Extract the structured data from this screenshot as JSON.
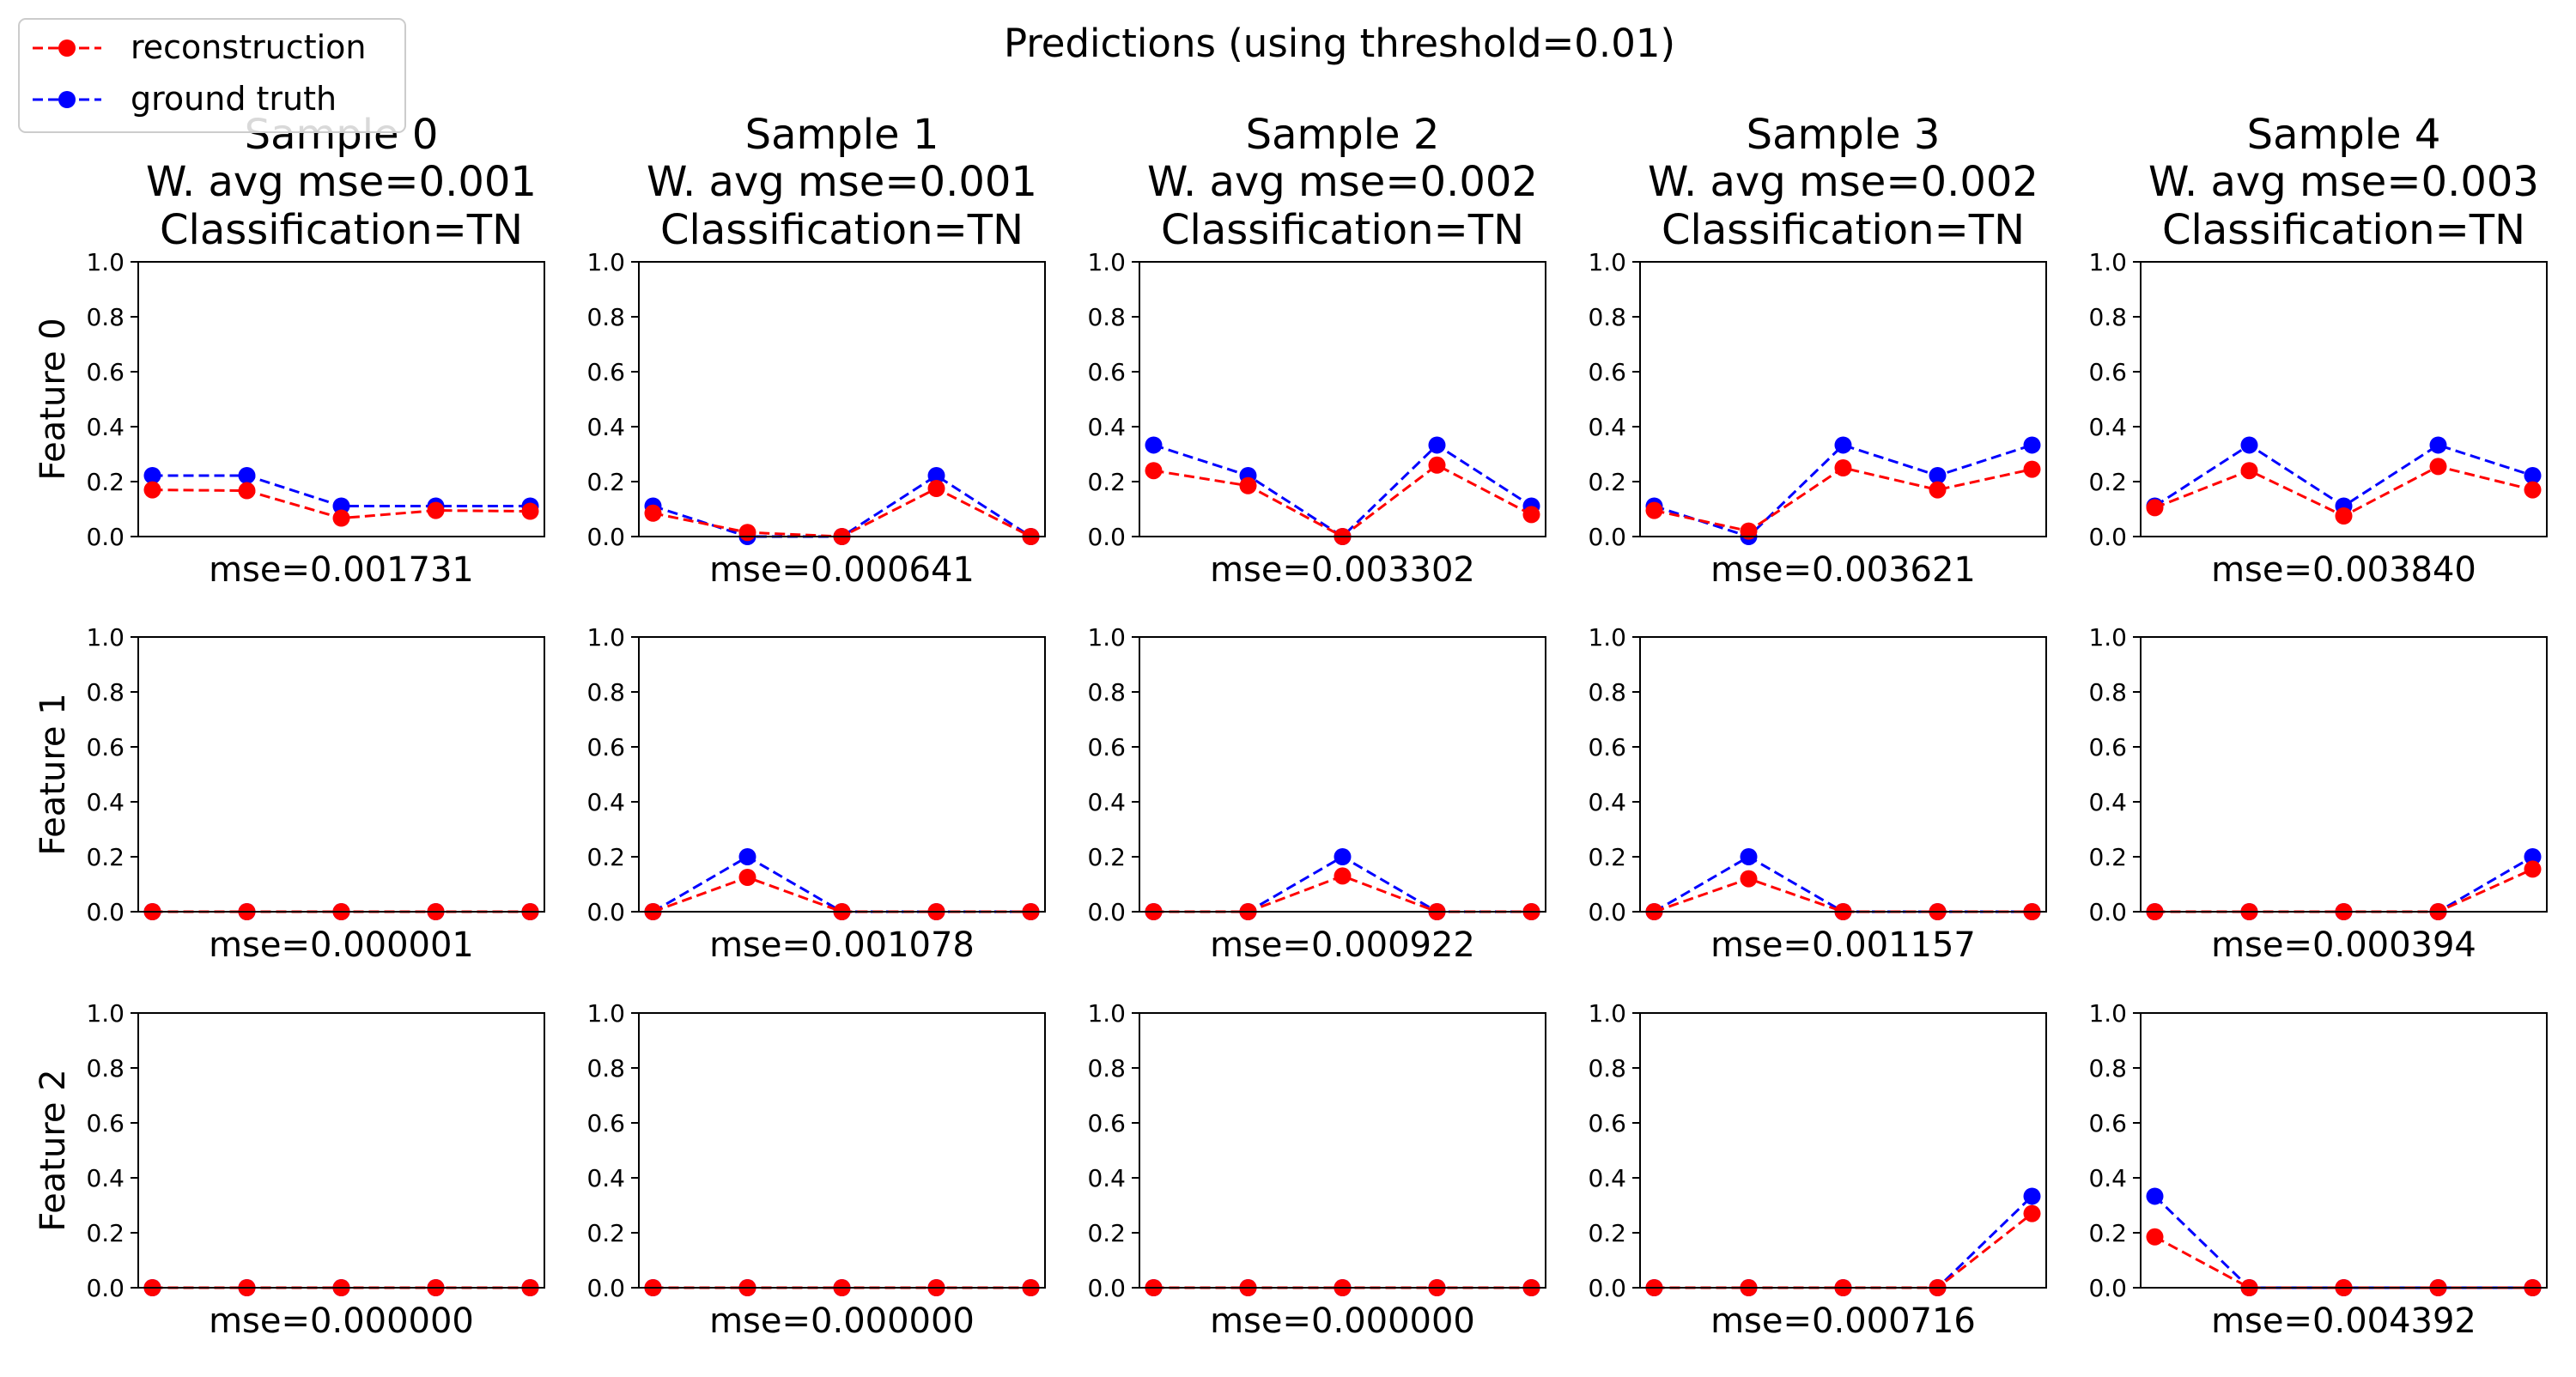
{
  "figure": {
    "suptitle": "Predictions (using threshold=0.01)",
    "legend": {
      "placement": "top-left",
      "entries": [
        {
          "label": "reconstruction",
          "color": "#ff0000"
        },
        {
          "label": "ground truth",
          "color": "#0000ff"
        }
      ]
    }
  },
  "chart_data": {
    "type": "line",
    "grid": false,
    "x": [
      0,
      1,
      2,
      3,
      4
    ],
    "xlim": [
      -0.15,
      4.15
    ],
    "ylim": [
      0,
      1
    ],
    "yticks": [
      "0.0",
      "0.2",
      "0.4",
      "0.6",
      "0.8",
      "1.0"
    ],
    "series_styles": {
      "reconstruction": {
        "color": "#ff0000",
        "linestyle": "dashed",
        "marker": "circle"
      },
      "ground_truth": {
        "color": "#0000ff",
        "linestyle": "dashed",
        "marker": "circle"
      }
    },
    "rows": [
      "Feature 0",
      "Feature 1",
      "Feature 2"
    ],
    "columns": [
      {
        "title": "Sample 0",
        "subtitle": "W. avg mse=0.001",
        "classification": "Classification=TN"
      },
      {
        "title": "Sample 1",
        "subtitle": "W. avg mse=0.001",
        "classification": "Classification=TN"
      },
      {
        "title": "Sample 2",
        "subtitle": "W. avg mse=0.002",
        "classification": "Classification=TN"
      },
      {
        "title": "Sample 3",
        "subtitle": "W. avg mse=0.002",
        "classification": "Classification=TN"
      },
      {
        "title": "Sample 4",
        "subtitle": "W. avg mse=0.003",
        "classification": "Classification=TN"
      }
    ],
    "panels": [
      [
        {
          "xlabel": "mse=0.001731",
          "reconstruction": [
            0.17,
            0.167,
            0.067,
            0.095,
            0.092
          ],
          "ground_truth": [
            0.222,
            0.222,
            0.111,
            0.111,
            0.111
          ]
        },
        {
          "xlabel": "mse=0.000641",
          "reconstruction": [
            0.085,
            0.015,
            0.0,
            0.175,
            0.0
          ],
          "ground_truth": [
            0.111,
            0.0,
            0.0,
            0.222,
            0.0
          ]
        },
        {
          "xlabel": "mse=0.003302",
          "reconstruction": [
            0.24,
            0.185,
            0.0,
            0.26,
            0.08
          ],
          "ground_truth": [
            0.333,
            0.222,
            0.0,
            0.333,
            0.111
          ]
        },
        {
          "xlabel": "mse=0.003621",
          "reconstruction": [
            0.095,
            0.02,
            0.25,
            0.17,
            0.245
          ],
          "ground_truth": [
            0.111,
            0.0,
            0.333,
            0.222,
            0.333
          ]
        },
        {
          "xlabel": "mse=0.003840",
          "reconstruction": [
            0.105,
            0.24,
            0.075,
            0.255,
            0.17
          ],
          "ground_truth": [
            0.111,
            0.333,
            0.111,
            0.333,
            0.222
          ]
        }
      ],
      [
        {
          "xlabel": "mse=0.000001",
          "reconstruction": [
            0,
            0,
            0,
            0,
            0
          ],
          "ground_truth": [
            0,
            0,
            0,
            0,
            0
          ]
        },
        {
          "xlabel": "mse=0.001078",
          "reconstruction": [
            0,
            0.125,
            0,
            0,
            0
          ],
          "ground_truth": [
            0,
            0.2,
            0,
            0,
            0
          ]
        },
        {
          "xlabel": "mse=0.000922",
          "reconstruction": [
            0,
            0,
            0.13,
            0,
            0
          ],
          "ground_truth": [
            0,
            0,
            0.2,
            0,
            0
          ]
        },
        {
          "xlabel": "mse=0.001157",
          "reconstruction": [
            0,
            0.12,
            0,
            0,
            0
          ],
          "ground_truth": [
            0,
            0.2,
            0,
            0,
            0
          ]
        },
        {
          "xlabel": "mse=0.000394",
          "reconstruction": [
            0,
            0,
            0,
            0,
            0.155
          ],
          "ground_truth": [
            0,
            0,
            0,
            0,
            0.2
          ]
        }
      ],
      [
        {
          "xlabel": "mse=0.000000",
          "reconstruction": [
            0,
            0,
            0,
            0,
            0
          ],
          "ground_truth": [
            0,
            0,
            0,
            0,
            0
          ]
        },
        {
          "xlabel": "mse=0.000000",
          "reconstruction": [
            0,
            0,
            0,
            0,
            0
          ],
          "ground_truth": [
            0,
            0,
            0,
            0,
            0
          ]
        },
        {
          "xlabel": "mse=0.000000",
          "reconstruction": [
            0,
            0,
            0,
            0,
            0
          ],
          "ground_truth": [
            0,
            0,
            0,
            0,
            0
          ]
        },
        {
          "xlabel": "mse=0.000716",
          "reconstruction": [
            0,
            0,
            0,
            0,
            0.27
          ],
          "ground_truth": [
            0,
            0,
            0,
            0,
            0.333
          ]
        },
        {
          "xlabel": "mse=0.004392",
          "reconstruction": [
            0.185,
            0,
            0,
            0,
            0
          ],
          "ground_truth": [
            0.333,
            0,
            0,
            0,
            0
          ]
        }
      ]
    ]
  }
}
